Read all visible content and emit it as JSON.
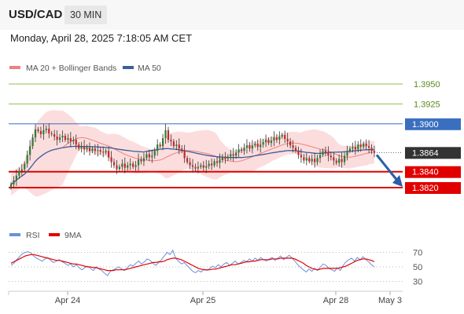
{
  "header": {
    "symbol": "USD/CAD",
    "timeframe": "30 MIN"
  },
  "datetime": "Monday, April 28, 2025 7:18:05 AM CET",
  "colors": {
    "up_candle": "#2e7d32",
    "down_candle": "#c62828",
    "wick": "#333333",
    "ma20": "#f08080",
    "bollinger_fill": "#fcd7d7",
    "ma50": "#3a5f9a",
    "target_line": "#8bc34a",
    "resistance_line": "#3a6fc0",
    "support_line": "#e00000",
    "current_price": "#333333",
    "arrow": "#2a5fa8",
    "rsi": "#6d8fd9",
    "rsi_ma": "#e00000"
  },
  "legend": {
    "ma20_label": "MA 20 + Bollinger Bands",
    "ma50_label": "MA 50",
    "rsi_label": "RSI",
    "rsi_ma_label": "9MA"
  },
  "chart_data": {
    "type": "candlestick",
    "x_ticks": [
      "Apr 24",
      "Apr 25",
      "Apr 28",
      "May 3"
    ],
    "price_range": [
      1.3808,
      1.3966
    ],
    "levels": [
      {
        "value": 1.395,
        "label": "1.3950",
        "kind": "target"
      },
      {
        "value": 1.3925,
        "label": "1.3925",
        "kind": "target"
      },
      {
        "value": 1.39,
        "label": "1.3900",
        "kind": "resistance"
      },
      {
        "value": 1.3864,
        "label": "1.3864",
        "kind": "current"
      },
      {
        "value": 1.384,
        "label": "1.3840",
        "kind": "support"
      },
      {
        "value": 1.382,
        "label": "1.3820",
        "kind": "support"
      }
    ],
    "forecast_arrow": {
      "from_price": 1.3864,
      "to_price": 1.382
    },
    "closes": [
      1.3824,
      1.3829,
      1.3835,
      1.3841,
      1.3843,
      1.385,
      1.3861,
      1.3872,
      1.3883,
      1.3893,
      1.3891,
      1.3887,
      1.3892,
      1.3894,
      1.3888,
      1.3887,
      1.3884,
      1.388,
      1.3883,
      1.3885,
      1.388,
      1.3882,
      1.3878,
      1.388,
      1.3874,
      1.3869,
      1.3872,
      1.3868,
      1.387,
      1.3866,
      1.3869,
      1.3866,
      1.3867,
      1.3865,
      1.3864,
      1.3866,
      1.3858,
      1.3852,
      1.3848,
      1.3843,
      1.3846,
      1.385,
      1.3845,
      1.3848,
      1.385,
      1.3846,
      1.3848,
      1.3855,
      1.3853,
      1.3857,
      1.3862,
      1.3858,
      1.386,
      1.3866,
      1.3874,
      1.3872,
      1.3882,
      1.3892,
      1.388,
      1.3878,
      1.3872,
      1.3874,
      1.3869,
      1.3867,
      1.3857,
      1.3852,
      1.3848,
      1.3846,
      1.3844,
      1.3846,
      1.3848,
      1.3845,
      1.3847,
      1.385,
      1.3848,
      1.3853,
      1.3851,
      1.3855,
      1.3858,
      1.3856,
      1.3859,
      1.3862,
      1.386,
      1.3864,
      1.3868,
      1.3866,
      1.387,
      1.3873,
      1.3869,
      1.3873,
      1.3875,
      1.3871,
      1.3874,
      1.3877,
      1.388,
      1.3876,
      1.3879,
      1.3883,
      1.388,
      1.3884,
      1.3886,
      1.3881,
      1.3878,
      1.3873,
      1.387,
      1.3866,
      1.3861,
      1.3858,
      1.3854,
      1.3857,
      1.3853,
      1.3856,
      1.3852,
      1.3857,
      1.3861,
      1.3866,
      1.3864,
      1.386,
      1.3858,
      1.3854,
      1.3851,
      1.3856,
      1.3852,
      1.386,
      1.3866,
      1.3869,
      1.3871,
      1.3868,
      1.3874,
      1.3871,
      1.3875,
      1.3872,
      1.387,
      1.3866,
      1.3864
    ],
    "rsi": {
      "axis_ticks": [
        70,
        50,
        30
      ],
      "rsi_values": [
        52,
        55,
        60,
        64,
        68,
        70,
        71,
        69,
        65,
        62,
        60,
        58,
        61,
        63,
        59,
        56,
        58,
        60,
        57,
        55,
        52,
        54,
        50,
        53,
        49,
        46,
        49,
        51,
        48,
        45,
        50,
        47,
        45,
        41,
        38,
        44,
        46,
        48,
        50,
        47,
        45,
        49,
        53,
        51,
        55,
        58,
        54,
        57,
        61,
        59,
        55,
        52,
        56,
        60,
        65,
        70,
        67,
        73,
        62,
        58,
        54,
        56,
        52,
        48,
        44,
        42,
        45,
        43,
        47,
        45,
        48,
        51,
        49,
        53,
        50,
        54,
        56,
        52,
        55,
        58,
        54,
        56,
        59,
        57,
        61,
        58,
        62,
        59,
        63,
        60,
        58,
        61,
        63,
        59,
        62,
        65,
        60,
        63,
        66,
        62,
        58,
        53,
        49,
        46,
        43,
        47,
        44,
        48,
        45,
        50,
        54,
        52,
        48,
        46,
        44,
        49,
        45,
        52,
        57,
        60,
        62,
        58,
        63,
        60,
        64,
        60,
        57,
        53,
        50
      ],
      "ma_values": [
        55,
        57,
        59,
        61,
        63,
        65,
        66,
        67,
        67,
        66,
        65,
        64,
        63,
        62,
        61,
        60,
        59,
        59,
        58,
        57,
        56,
        55,
        54,
        54,
        53,
        52,
        51,
        50,
        50,
        49,
        49,
        48,
        47,
        46,
        45,
        45,
        45,
        46,
        46,
        46,
        46,
        47,
        48,
        49,
        50,
        51,
        52,
        53,
        54,
        55,
        56,
        56,
        57,
        57,
        58,
        60,
        61,
        62,
        62,
        61,
        60,
        58,
        56,
        54,
        52,
        50,
        48,
        47,
        46,
        46,
        46,
        47,
        47,
        48,
        49,
        50,
        51,
        52,
        53,
        53,
        54,
        55,
        56,
        57,
        57,
        58,
        58,
        59,
        60,
        60,
        60,
        60,
        61,
        61,
        61,
        62,
        62,
        62,
        62,
        62,
        61,
        59,
        57,
        55,
        52,
        50,
        48,
        47,
        46,
        47,
        48,
        48,
        48,
        48,
        48,
        48,
        49,
        50,
        51,
        53,
        55,
        57,
        59,
        60,
        61,
        61,
        60,
        59,
        57
      ]
    }
  }
}
